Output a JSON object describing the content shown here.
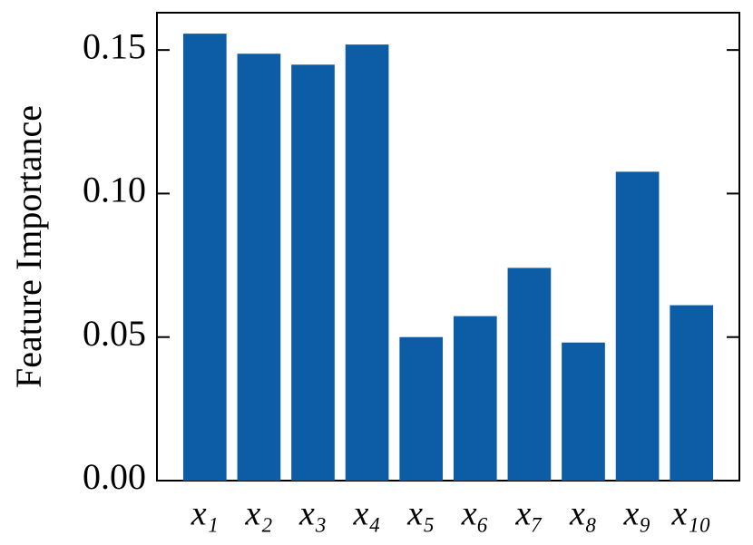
{
  "chart_data": {
    "type": "bar",
    "y_label": "Feature Importance",
    "categories": [
      "x₁",
      "x₂",
      "x₃",
      "x₄",
      "x₅",
      "x₆",
      "x₇",
      "x₈",
      "x₉",
      "x₁₀"
    ],
    "values": [
      0.1557,
      0.1487,
      0.1449,
      0.1519,
      0.05,
      0.0573,
      0.0741,
      0.0481,
      0.1076,
      0.0611
    ],
    "color": "#0c5da5",
    "ylim": [
      0,
      0.163
    ],
    "yticks": [
      {
        "value": 0,
        "label": "0.00"
      },
      {
        "value": 0.05,
        "label": "0.05"
      },
      {
        "value": 0.1,
        "label": "0.10"
      },
      {
        "value": 0.15,
        "label": "0.15"
      }
    ],
    "grid": false
  }
}
